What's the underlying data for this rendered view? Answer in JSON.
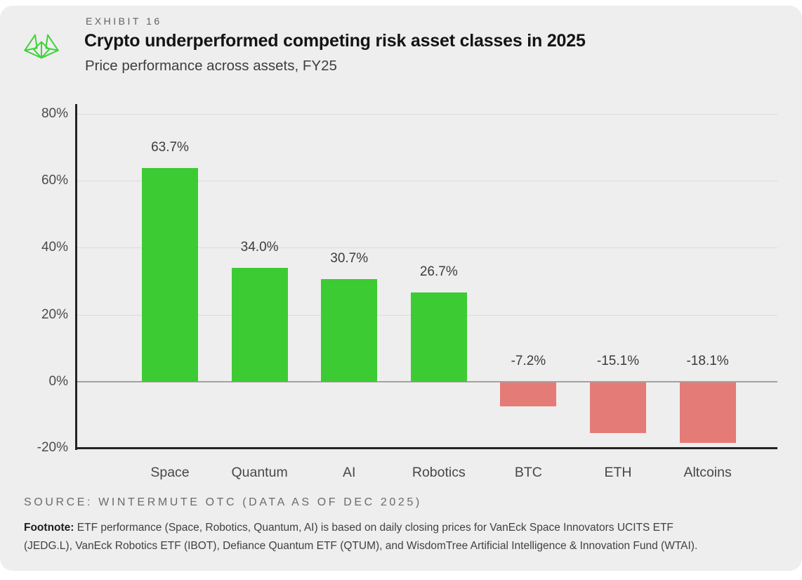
{
  "header": {
    "exhibit_label": "EXHIBIT 16",
    "title": "Crypto underperformed competing risk asset classes in 2025",
    "subtitle": "Price performance across assets, FY25"
  },
  "logo": {
    "name": "wintermute-logo",
    "color": "#3fd437"
  },
  "chart_data": {
    "type": "bar",
    "title": "Crypto underperformed competing risk asset classes in 2025",
    "subtitle": "Price performance across assets, FY25",
    "categories": [
      "Space",
      "Quantum",
      "AI",
      "Robotics",
      "BTC",
      "ETH",
      "Altcoins"
    ],
    "values": [
      63.7,
      34.0,
      30.7,
      26.7,
      -7.2,
      -15.1,
      -18.1
    ],
    "value_labels": [
      "63.7%",
      "34.0%",
      "30.7%",
      "26.7%",
      "-7.2%",
      "-15.1%",
      "-18.1%"
    ],
    "y_ticks": [
      80,
      60,
      40,
      20,
      0,
      -20
    ],
    "y_tick_labels": [
      "80%",
      "60%",
      "40%",
      "20%",
      "0%",
      "-20%"
    ],
    "ylim": [
      -20.5,
      83
    ],
    "xlabel": "",
    "ylabel": "",
    "grid": "horizontal",
    "legend": "none",
    "positive_color": "#3dcb33",
    "negative_color": "#e57b76"
  },
  "source_line": "SOURCE: WINTERMUTE OTC (DATA AS OF DEC 2025)",
  "footnote": {
    "label": "Footnote:",
    "lines": [
      "ETF performance (Space, Robotics, Quantum, AI) is based on daily closing prices for VanEck Space Innovators UCITS ETF",
      "(JEDG.L), VanEck Robotics ETF (IBOT), Defiance Quantum ETF (QTUM), and WisdomTree Artificial Intelligence & Innovation Fund (WTAI)."
    ]
  }
}
